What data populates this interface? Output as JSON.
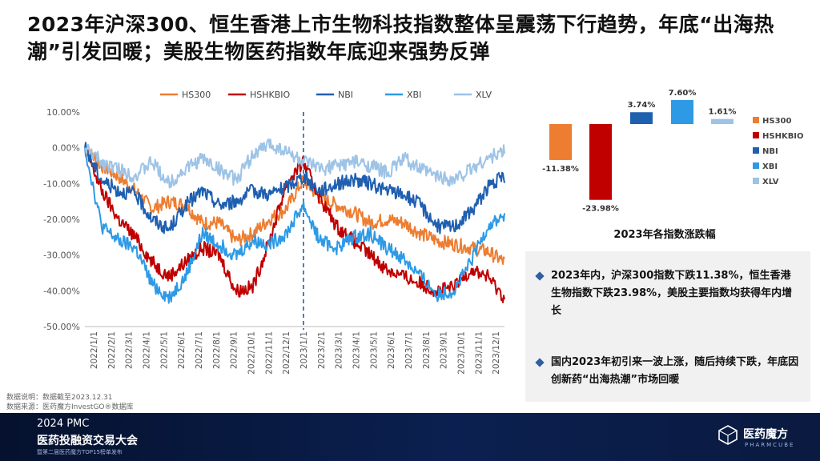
{
  "title": "2023年沪深300、恒生香港上市生物科技指数整体呈震荡下行趋势，年底“出海热潮”引发回暖；美股生物医药指数年底迎来强势反弹",
  "chart_data": [
    {
      "type": "line",
      "legend_position": "top",
      "ylim": [
        -50,
        10
      ],
      "y_ticks": [
        "10.00%",
        "0.00%",
        "-10.00%",
        "-20.00%",
        "-30.00%",
        "-40.00%",
        "-50.00%"
      ],
      "x_ticks": [
        "2022/1/1",
        "2022/2/1",
        "2022/3/1",
        "2022/4/1",
        "2022/5/1",
        "2022/6/1",
        "2022/7/1",
        "2022/8/1",
        "2022/9/1",
        "2022/10/1",
        "2022/11/1",
        "2022/12/1",
        "2023/1/1",
        "2023/2/1",
        "2023/3/1",
        "2023/4/1",
        "2023/5/1",
        "2023/6/1",
        "2023/7/1",
        "2023/8/1",
        "2023/9/1",
        "2023/10/1",
        "2023/11/1",
        "2023/12/1"
      ],
      "divider_at": "2023/1/1",
      "series": [
        {
          "name": "HS300",
          "color": "#ed7d31",
          "values": [
            0,
            -5,
            -8,
            -12,
            -17,
            -15,
            -16,
            -21,
            -21,
            -26,
            -24,
            -20,
            -17,
            -9,
            -14,
            -16,
            -18,
            -21,
            -20,
            -21,
            -24,
            -26,
            -27,
            -28,
            -29,
            -32
          ]
        },
        {
          "name": "HSHKBIO",
          "color": "#c00000",
          "values": [
            0,
            -12,
            -20,
            -25,
            -32,
            -36,
            -32,
            -28,
            -30,
            -40,
            -39,
            -26,
            -10,
            -4,
            -14,
            -22,
            -26,
            -30,
            -34,
            -36,
            -38,
            -40,
            -39,
            -34,
            -36,
            -42
          ]
        },
        {
          "name": "NBI",
          "color": "#1f5fb0",
          "values": [
            0,
            -9,
            -12,
            -13,
            -20,
            -23,
            -16,
            -12,
            -16,
            -15,
            -12,
            -13,
            -11,
            -8,
            -12,
            -10,
            -9,
            -10,
            -12,
            -13,
            -16,
            -22,
            -22,
            -18,
            -11,
            -8
          ]
        },
        {
          "name": "XBI",
          "color": "#2e9ae6",
          "values": [
            0,
            -22,
            -26,
            -28,
            -38,
            -42,
            -36,
            -24,
            -27,
            -30,
            -26,
            -27,
            -24,
            -16,
            -26,
            -28,
            -25,
            -24,
            -28,
            -31,
            -36,
            -41,
            -40,
            -32,
            -22,
            -19
          ]
        },
        {
          "name": "XLV",
          "color": "#9dc3e6",
          "values": [
            0,
            -4,
            -6,
            -8,
            -4,
            -10,
            -6,
            -3,
            -6,
            -9,
            -2,
            1,
            -1,
            -4,
            -6,
            -5,
            -4,
            -5,
            -7,
            -3,
            -6,
            -8,
            -9,
            -6,
            -3,
            -1
          ]
        }
      ]
    },
    {
      "type": "bar",
      "title": "2023年各指数涨跌幅",
      "legend_position": "right",
      "categories": [
        "HS300",
        "HSHKBIO",
        "NBI",
        "XBI",
        "XLV"
      ],
      "values": [
        -11.38,
        -23.98,
        3.74,
        7.6,
        1.61
      ],
      "value_labels": [
        "-11.38%",
        "-23.98%",
        "3.74%",
        "7.60%",
        "1.61%"
      ],
      "colors": [
        "#ed7d31",
        "#c00000",
        "#1f5fb0",
        "#2e9ae6",
        "#9dc3e6"
      ]
    }
  ],
  "summary": {
    "bullets": [
      "2023年内，沪深300指数下跌11.38%，恒生香港生物指数下跌23.98%，美股主要指数均获得年内增长",
      "国内2023年初引来一波上涨，随后持续下跌，年底因创新药“出海热潮”市场回暖"
    ]
  },
  "notes": {
    "data_note": "数据说明：数据截至2023.12.31",
    "data_source": "数据来源：医药魔方InvestGO®数据库"
  },
  "footer": {
    "event_year": "2024 PMC",
    "event_name": "医药投融资交易大会",
    "event_sub": "暨第二届医药魔方TOP15榜单发布",
    "brand": "医药魔方",
    "brand_en": "PHARMCUBE"
  }
}
